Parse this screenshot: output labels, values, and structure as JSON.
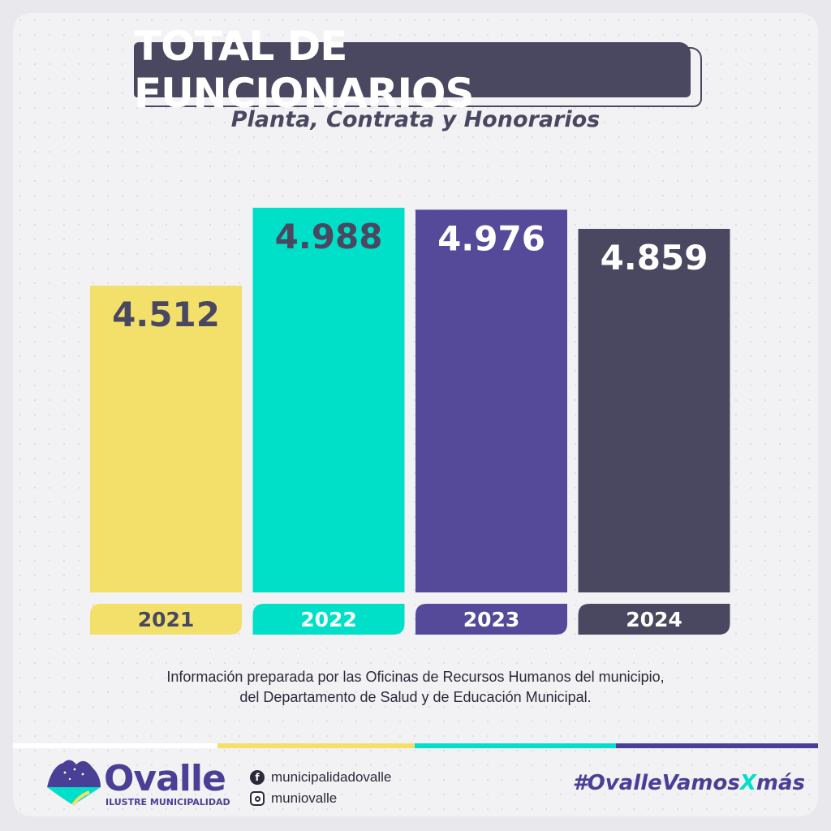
{
  "title": "TOTAL DE FUNCIONARIOS",
  "subtitle": "Planta, Contrata y Honorarios",
  "chart_data": {
    "type": "bar",
    "title": "TOTAL DE FUNCIONARIOS",
    "subtitle": "Planta, Contrata y Honorarios",
    "categories": [
      "2021",
      "2022",
      "2023",
      "2024"
    ],
    "values": [
      4512,
      4988,
      4976,
      4859
    ],
    "value_labels": [
      "4.512",
      "4.988",
      "4.976",
      "4.859"
    ],
    "xlabel": "",
    "ylabel": "",
    "colors": [
      "#f3e06b",
      "#00dfc7",
      "#554a99",
      "#4a4861"
    ],
    "label_colors": [
      "#4a4861",
      "#4a4861",
      "#ffffff",
      "#ffffff"
    ],
    "category_text_colors": [
      "#4a4861",
      "#ffffff",
      "#ffffff",
      "#ffffff"
    ],
    "grid": false,
    "legend": "none"
  },
  "note": {
    "line1": "Información preparada por las Oficinas de Recursos Humanos del municipio,",
    "line2": "del Departamento de Salud y de Educación Municipal."
  },
  "stripe_colors": [
    "#ffffff",
    "#f3e06b",
    "#00dfc7",
    "#4a3f96"
  ],
  "footer": {
    "logo_word": "Ovalle",
    "logo_sub": "ILUSTRE MUNICIPALIDAD",
    "facebook_icon": "facebook-icon",
    "facebook": "municipalidadovalle",
    "instagram_icon": "instagram-icon",
    "instagram": "muniovalle",
    "hashtag_a": "#OvalleVamos",
    "hashtag_b": "X",
    "hashtag_c": "más",
    "hashtag_colors": [
      "#4a3f96",
      "#00dfc7",
      "#4a3f96"
    ]
  }
}
